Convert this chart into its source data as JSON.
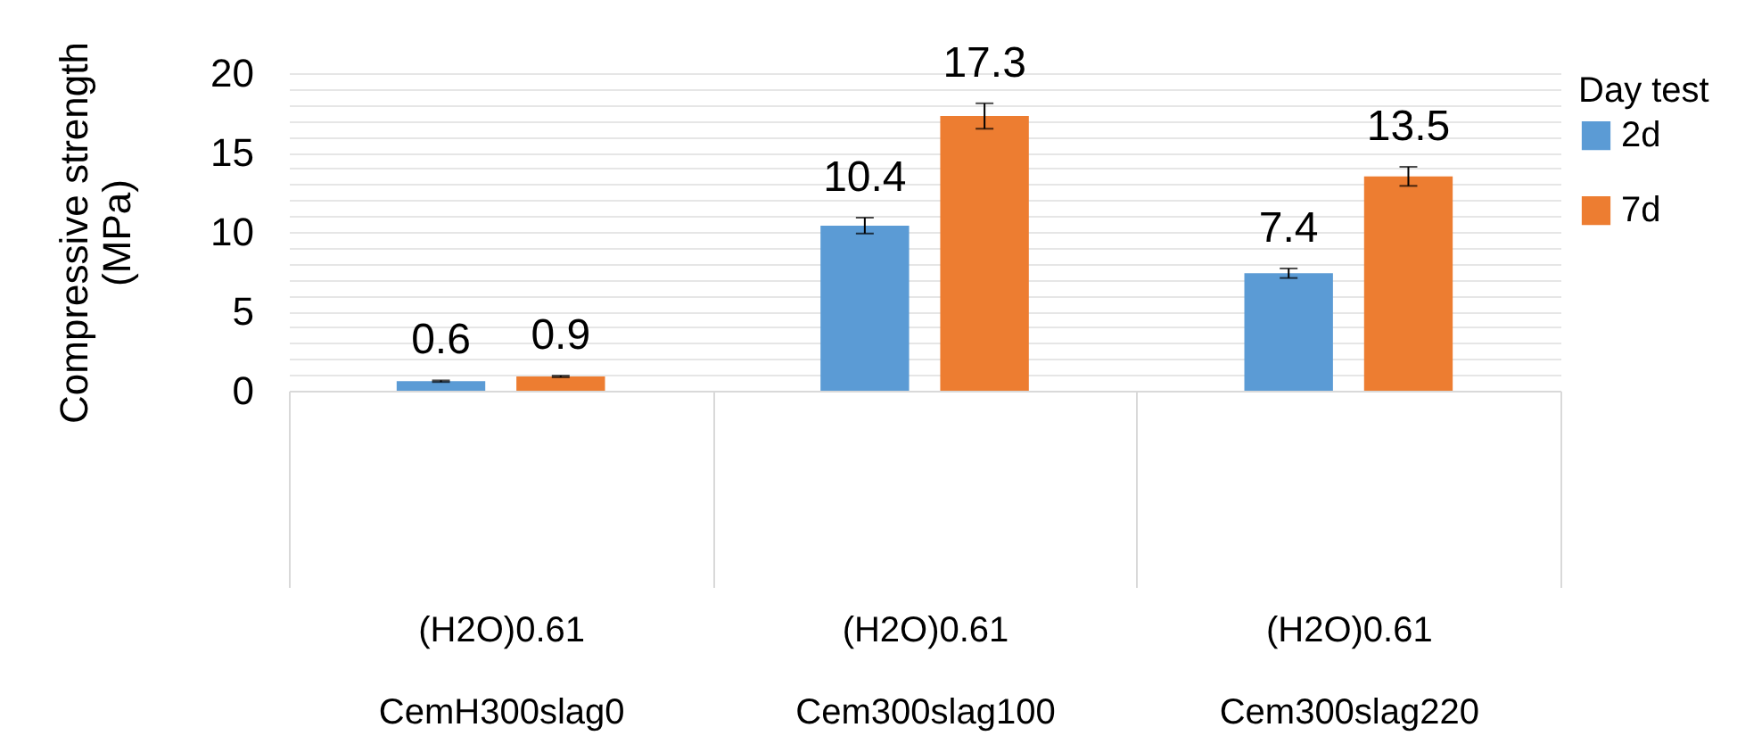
{
  "chart_data": {
    "type": "bar",
    "ylabel": "Compressive strength (MPa)",
    "legend_title": "Day test",
    "categories": [
      "(H2O)0.61\nCemH300slag0",
      "(H2O)0.61\nCem300slag100",
      "(H2O)0.61\nCem300slag220"
    ],
    "series": [
      {
        "name": "2d",
        "color": "#5b9bd5",
        "values": [
          0.6,
          10.4,
          7.4
        ],
        "errors": [
          0.05,
          0.5,
          0.3
        ]
      },
      {
        "name": "7d",
        "color": "#ed7d31",
        "values": [
          0.9,
          17.3,
          13.5
        ],
        "errors": [
          0.05,
          0.8,
          0.6
        ]
      }
    ],
    "ylim": [
      0,
      20
    ],
    "yticks": [
      0,
      {
        "value": 1,
        "label": null
      },
      {
        "value": 2,
        "label": null
      },
      {
        "value": 3,
        "label": null
      },
      {
        "value": 4,
        "label": null
      },
      5,
      {
        "value": 6,
        "label": null
      },
      {
        "value": 7,
        "label": null
      },
      {
        "value": 8,
        "label": null
      },
      {
        "value": 9,
        "label": null
      },
      10,
      {
        "value": 11,
        "label": null
      },
      {
        "value": 12,
        "label": null
      },
      {
        "value": 13,
        "label": null
      },
      {
        "value": 14,
        "label": null
      },
      15,
      {
        "value": 16,
        "label": null
      },
      {
        "value": 17,
        "label": null
      },
      {
        "value": 18,
        "label": null
      },
      {
        "value": 19,
        "label": null
      },
      20
    ],
    "grid": true,
    "legend": "right",
    "data_labels": true
  }
}
